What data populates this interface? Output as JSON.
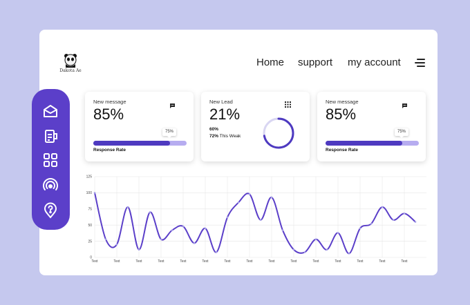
{
  "brand": {
    "logo_text": "Dakota Ae"
  },
  "nav": {
    "home": "Home",
    "support": "support",
    "account": "my account"
  },
  "sidebar": {
    "items": [
      {
        "icon": "mail-icon"
      },
      {
        "icon": "clipboard-icon"
      },
      {
        "icon": "grid-icon"
      },
      {
        "icon": "broadcast-icon"
      },
      {
        "icon": "location-help-icon"
      }
    ]
  },
  "cards": [
    {
      "label": "New message",
      "value": "85%",
      "bubble": "75%",
      "progress": 0.82,
      "footer": "Response Rate",
      "icon": "chat-icon"
    },
    {
      "label": "New Lead",
      "value": "21%",
      "line1_value": "60%",
      "line2_value": "72%",
      "line2_text": "This Weak",
      "ring_progress": 0.72,
      "icon": "dots-grid-icon"
    },
    {
      "label": "New message",
      "value": "85%",
      "bubble": "75%",
      "progress": 0.82,
      "footer": "Response Rate",
      "icon": "chat-icon"
    }
  ],
  "chart_data": {
    "type": "line",
    "title": "",
    "xlabel": "",
    "ylabel": "",
    "ylim": [
      0,
      125
    ],
    "yticks": [
      "0",
      "25",
      "50",
      "75",
      "100",
      "125"
    ],
    "categories": [
      "Text",
      "Text",
      "Text",
      "Text",
      "Text",
      "Text",
      "Text",
      "Text",
      "Text",
      "Text",
      "Text",
      "Text",
      "Text",
      "Text",
      "Text"
    ],
    "x": [
      0,
      0.5,
      1,
      1.5,
      2,
      2.5,
      3,
      3.5,
      4,
      4.5,
      5,
      5.5,
      6,
      6.5,
      7,
      7.5,
      8,
      8.5,
      9,
      9.5,
      10,
      10.5,
      11,
      11.5,
      12,
      12.5,
      13,
      13.5,
      14,
      14.5
    ],
    "values": [
      100,
      28,
      20,
      78,
      12,
      70,
      28,
      42,
      48,
      22,
      45,
      8,
      62,
      85,
      98,
      58,
      93,
      42,
      12,
      8,
      28,
      12,
      38,
      6,
      45,
      52,
      78,
      58,
      68,
      55
    ],
    "line_color": "#5b3fc9",
    "grid": true
  },
  "colors": {
    "accent": "#5b3fc9",
    "background": "#c5c8ee",
    "bar_light": "#b6acf0"
  }
}
